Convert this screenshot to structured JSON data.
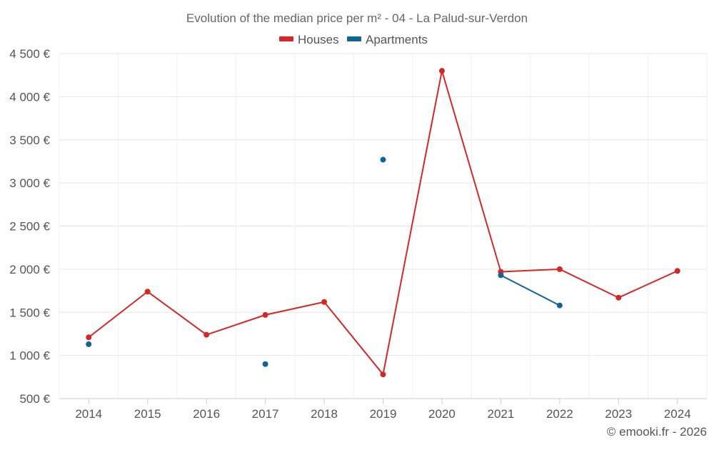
{
  "chart_data": {
    "type": "line",
    "title": "Evolution of the median price per m² - 04 - La Palud-sur-Verdon",
    "categories": [
      "2014",
      "2015",
      "2016",
      "2017",
      "2018",
      "2019",
      "2020",
      "2021",
      "2022",
      "2023",
      "2024"
    ],
    "series": [
      {
        "name": "Houses",
        "color": "#d62728",
        "values": [
          1210,
          1740,
          1240,
          1470,
          1620,
          780,
          4300,
          1970,
          2000,
          1670,
          1980
        ]
      },
      {
        "name": "Apartments",
        "color": "#0e6696",
        "values": [
          1130,
          null,
          null,
          900,
          null,
          3270,
          null,
          1930,
          1580,
          null,
          null
        ]
      }
    ],
    "ylim": [
      500,
      4500
    ],
    "yticks": [
      500,
      1000,
      1500,
      2000,
      2500,
      3000,
      3500,
      4000,
      4500
    ],
    "ytick_labels": [
      "500 €",
      "1 000 €",
      "1 500 €",
      "2 000 €",
      "2 500 €",
      "3 000 €",
      "3 500 €",
      "4 000 €",
      "4 500 €"
    ],
    "xlabel": "",
    "ylabel": "",
    "grid": true,
    "legend_position": "top-center",
    "credit": "© emooki.fr - 2026"
  }
}
